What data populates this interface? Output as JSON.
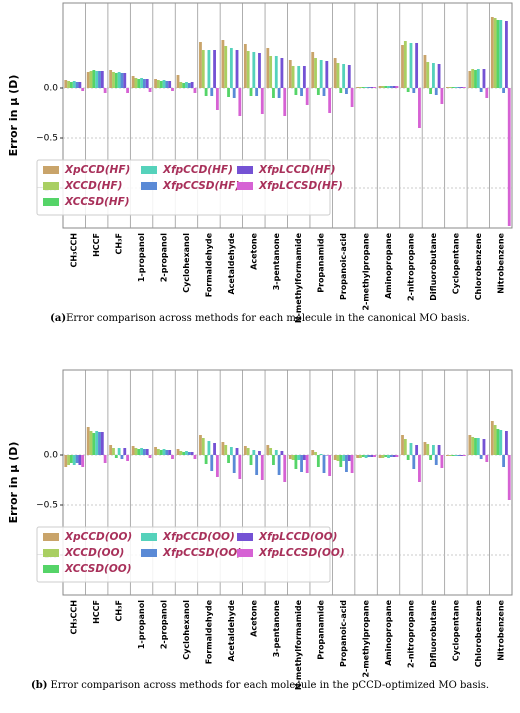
{
  "chart_data": [
    {
      "type": "bar",
      "ylabel": "Error in μ (D)",
      "caption_label": "(a)",
      "caption": "Error comparison across methods for each molecule in the canonical MO basis.",
      "categories": [
        "CH₃CCH",
        "HCCF",
        "CH₃F",
        "1-propanol",
        "2-propanol",
        "Cyclohexanol",
        "Formaldehyde",
        "Acetaldehyde",
        "Acetone",
        "3-pentanone",
        "N-methylformamide",
        "Propanamide",
        "Propanoic-acid",
        "2-methylpropane",
        "Aminopropane",
        "2-nitropropane",
        "Difluorobutane",
        "Cyclopentane",
        "Chlorobenzene",
        "Nitrobenzene"
      ],
      "ylim": [
        -1.4,
        0.85
      ],
      "yticks": [
        {
          "value": -1.0,
          "label": "−1.0"
        },
        {
          "value": -0.5,
          "label": "−0.5"
        },
        {
          "value": 0.0,
          "label": "0.0"
        }
      ],
      "grid": true,
      "legend_loc": "lower left",
      "series": [
        {
          "name": "XpCCD(HF)",
          "color": "#c9a46a",
          "values": [
            0.08,
            0.16,
            0.18,
            0.12,
            0.09,
            0.13,
            0.46,
            0.48,
            0.44,
            0.4,
            0.28,
            0.36,
            0.3,
            0.01,
            0.02,
            0.43,
            0.33,
            0.01,
            0.17,
            0.71
          ]
        },
        {
          "name": "XCCD(HF)",
          "color": "#a9cf62",
          "values": [
            0.07,
            0.17,
            0.16,
            0.1,
            0.08,
            0.06,
            0.38,
            0.42,
            0.37,
            0.32,
            0.22,
            0.3,
            0.25,
            0.01,
            0.02,
            0.47,
            0.26,
            0.01,
            0.19,
            0.7
          ]
        },
        {
          "name": "XCCSD(HF)",
          "color": "#55d468",
          "values": [
            0.06,
            0.18,
            0.15,
            0.09,
            0.07,
            0.05,
            -0.08,
            -0.09,
            -0.08,
            -0.1,
            -0.07,
            -0.07,
            -0.05,
            0.01,
            0.02,
            -0.04,
            -0.06,
            0.01,
            0.18,
            0.68
          ]
        },
        {
          "name": "XfpCCD(HF)",
          "color": "#55d2bb",
          "values": [
            0.07,
            0.17,
            0.16,
            0.1,
            0.08,
            0.06,
            0.38,
            0.4,
            0.36,
            0.32,
            0.22,
            0.28,
            0.24,
            0.01,
            0.02,
            0.45,
            0.25,
            0.01,
            0.19,
            0.68
          ]
        },
        {
          "name": "XfpCCSD(HF)",
          "color": "#5a8ad6",
          "values": [
            0.06,
            0.17,
            0.15,
            0.09,
            0.07,
            0.05,
            -0.08,
            -0.1,
            -0.08,
            -0.1,
            -0.08,
            -0.08,
            -0.06,
            0.01,
            0.02,
            -0.05,
            -0.07,
            0.01,
            -0.04,
            -0.05
          ]
        },
        {
          "name": "XfpLCCD(HF)",
          "color": "#7452d4",
          "values": [
            0.06,
            0.17,
            0.15,
            0.09,
            0.07,
            0.06,
            0.38,
            0.38,
            0.35,
            0.3,
            0.22,
            0.27,
            0.23,
            0.01,
            0.02,
            0.45,
            0.24,
            0.01,
            0.19,
            0.67
          ]
        },
        {
          "name": "XfpLCCSD(HF)",
          "color": "#d662d4",
          "values": [
            -0.03,
            -0.05,
            -0.05,
            -0.04,
            -0.03,
            -0.05,
            -0.22,
            -0.28,
            -0.26,
            -0.28,
            -0.17,
            -0.25,
            -0.19,
            0.01,
            0.02,
            -0.4,
            -0.16,
            0.01,
            -0.1,
            -1.38
          ]
        }
      ]
    },
    {
      "type": "bar",
      "ylabel": "Error in μ (D)",
      "caption_label": "(b)",
      "caption": "Error comparison across methods for each molecule in the pCCD-optimized MO basis.",
      "categories": [
        "CH₃CCH",
        "HCCF",
        "CH₃F",
        "1-propanol",
        "2-propanol",
        "Cyclohexanol",
        "Formaldehyde",
        "Acetaldehyde",
        "Acetone",
        "3-pentanone",
        "N-methylformamide",
        "Propanamide",
        "Propanoic-acid",
        "2-methylpropane",
        "Aminopropane",
        "2-nitropropane",
        "Difluorobutane",
        "Cyclopentane",
        "Chlorobenzene",
        "Nitrobenzene"
      ],
      "ylim": [
        -1.4,
        0.85
      ],
      "yticks": [
        {
          "value": -1.0,
          "label": "−1.0"
        },
        {
          "value": -0.5,
          "label": "−0.5"
        },
        {
          "value": 0.0,
          "label": "0.0"
        }
      ],
      "grid": true,
      "legend_loc": "lower left",
      "series": [
        {
          "name": "XpCCD(OO)",
          "color": "#c9a46a",
          "values": [
            -0.12,
            0.28,
            0.1,
            0.09,
            0.08,
            0.06,
            0.2,
            0.13,
            0.09,
            0.1,
            -0.04,
            0.05,
            -0.05,
            -0.03,
            -0.03,
            0.2,
            0.13,
            -0.01,
            0.2,
            0.34
          ]
        },
        {
          "name": "XCCD(OO)",
          "color": "#a9cf62",
          "values": [
            -0.1,
            0.24,
            0.07,
            0.07,
            0.06,
            0.04,
            0.17,
            0.1,
            0.07,
            0.07,
            -0.05,
            0.03,
            -0.06,
            -0.03,
            -0.03,
            0.16,
            0.11,
            -0.01,
            0.18,
            0.3
          ]
        },
        {
          "name": "XCCSD(OO)",
          "color": "#55d468",
          "values": [
            -0.08,
            0.22,
            -0.03,
            0.06,
            0.05,
            0.03,
            -0.09,
            -0.08,
            -0.1,
            -0.1,
            -0.14,
            -0.12,
            -0.12,
            -0.02,
            -0.02,
            -0.05,
            -0.05,
            -0.01,
            0.17,
            0.26
          ]
        },
        {
          "name": "XfpCCD(OO)",
          "color": "#55d2bb",
          "values": [
            -0.1,
            0.24,
            0.07,
            0.07,
            0.06,
            0.04,
            0.14,
            0.08,
            0.05,
            0.05,
            -0.05,
            0.01,
            -0.06,
            -0.03,
            -0.03,
            0.12,
            0.1,
            -0.01,
            0.17,
            0.25
          ]
        },
        {
          "name": "XfpCCSD(OO)",
          "color": "#5a8ad6",
          "values": [
            -0.08,
            0.23,
            -0.04,
            0.06,
            0.05,
            0.03,
            -0.16,
            -0.18,
            -0.2,
            -0.2,
            -0.17,
            -0.18,
            -0.17,
            -0.02,
            -0.02,
            -0.14,
            -0.1,
            -0.01,
            -0.04,
            -0.12
          ]
        },
        {
          "name": "XfpLCCD(OO)",
          "color": "#7452d4",
          "values": [
            -0.1,
            0.23,
            0.07,
            0.06,
            0.05,
            0.03,
            0.12,
            0.07,
            0.04,
            0.04,
            -0.05,
            0.0,
            -0.06,
            -0.02,
            -0.02,
            0.1,
            0.1,
            -0.01,
            0.16,
            0.24
          ]
        },
        {
          "name": "XfpLCCSD(OO)",
          "color": "#d662d4",
          "values": [
            -0.12,
            -0.08,
            -0.06,
            -0.03,
            -0.04,
            -0.04,
            -0.22,
            -0.24,
            -0.25,
            -0.27,
            -0.18,
            -0.21,
            -0.18,
            -0.02,
            -0.02,
            -0.27,
            -0.13,
            -0.01,
            -0.07,
            -0.45
          ]
        }
      ]
    }
  ]
}
